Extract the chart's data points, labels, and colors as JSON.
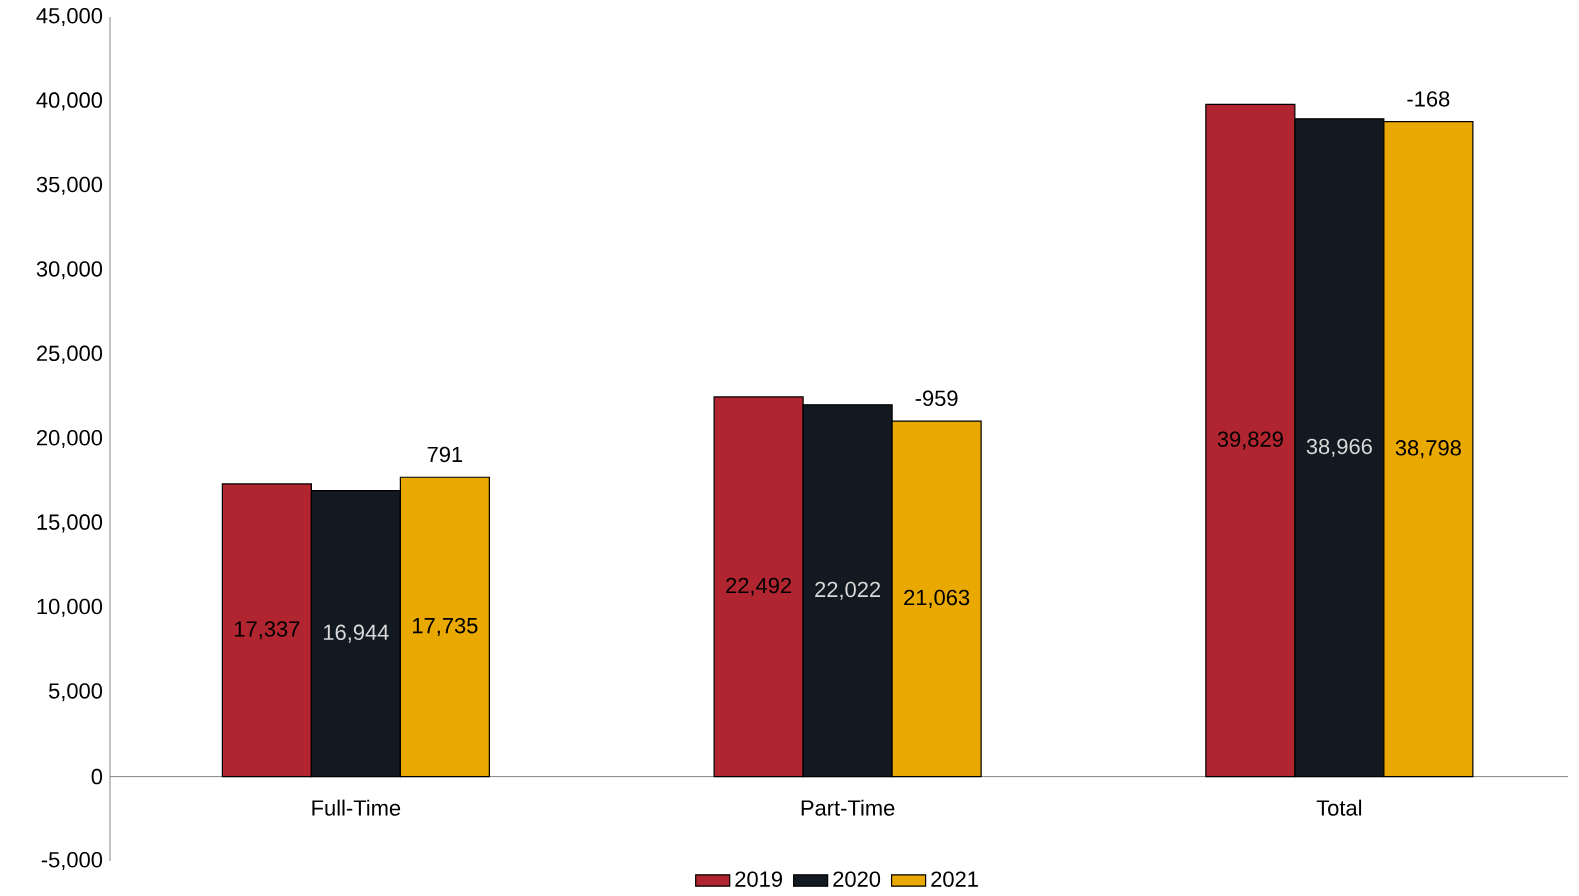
{
  "chart_data": {
    "type": "bar",
    "categories": [
      "Full-Time",
      "Part-Time",
      "Total"
    ],
    "series": [
      {
        "name": "2019",
        "color": "#b0252f",
        "values": [
          17337,
          22492,
          39829
        ],
        "value_labels": [
          "17,337",
          "22,492",
          "39,829"
        ]
      },
      {
        "name": "2020",
        "color": "#121920",
        "values": [
          16944,
          22022,
          38966
        ],
        "value_labels": [
          "16,944",
          "22,022",
          "38,966"
        ]
      },
      {
        "name": "2021",
        "color": "#e9a900",
        "values": [
          17735,
          21063,
          38798
        ],
        "value_labels": [
          "17,735",
          "21,063",
          "38,798"
        ]
      }
    ],
    "ylim": [
      -5000,
      45000
    ],
    "yticks": [
      {
        "value": -5000,
        "label": "-5,000"
      },
      0,
      {
        "value": 5000,
        "label": "5,000"
      },
      {
        "value": 10000,
        "label": "10,000"
      },
      {
        "value": 15000,
        "label": "15,000"
      },
      {
        "value": 20000,
        "label": "20,000"
      },
      {
        "value": 25000,
        "label": "25,000"
      },
      {
        "value": 30000,
        "label": "30,000"
      },
      {
        "value": 35000,
        "label": "35,000"
      },
      {
        "value": 40000,
        "label": "40,000"
      },
      {
        "value": 45000,
        "label": "45,000"
      }
    ],
    "annotations": [
      "791",
      "-959",
      "-168"
    ],
    "grid": false,
    "legend": "bottom"
  }
}
